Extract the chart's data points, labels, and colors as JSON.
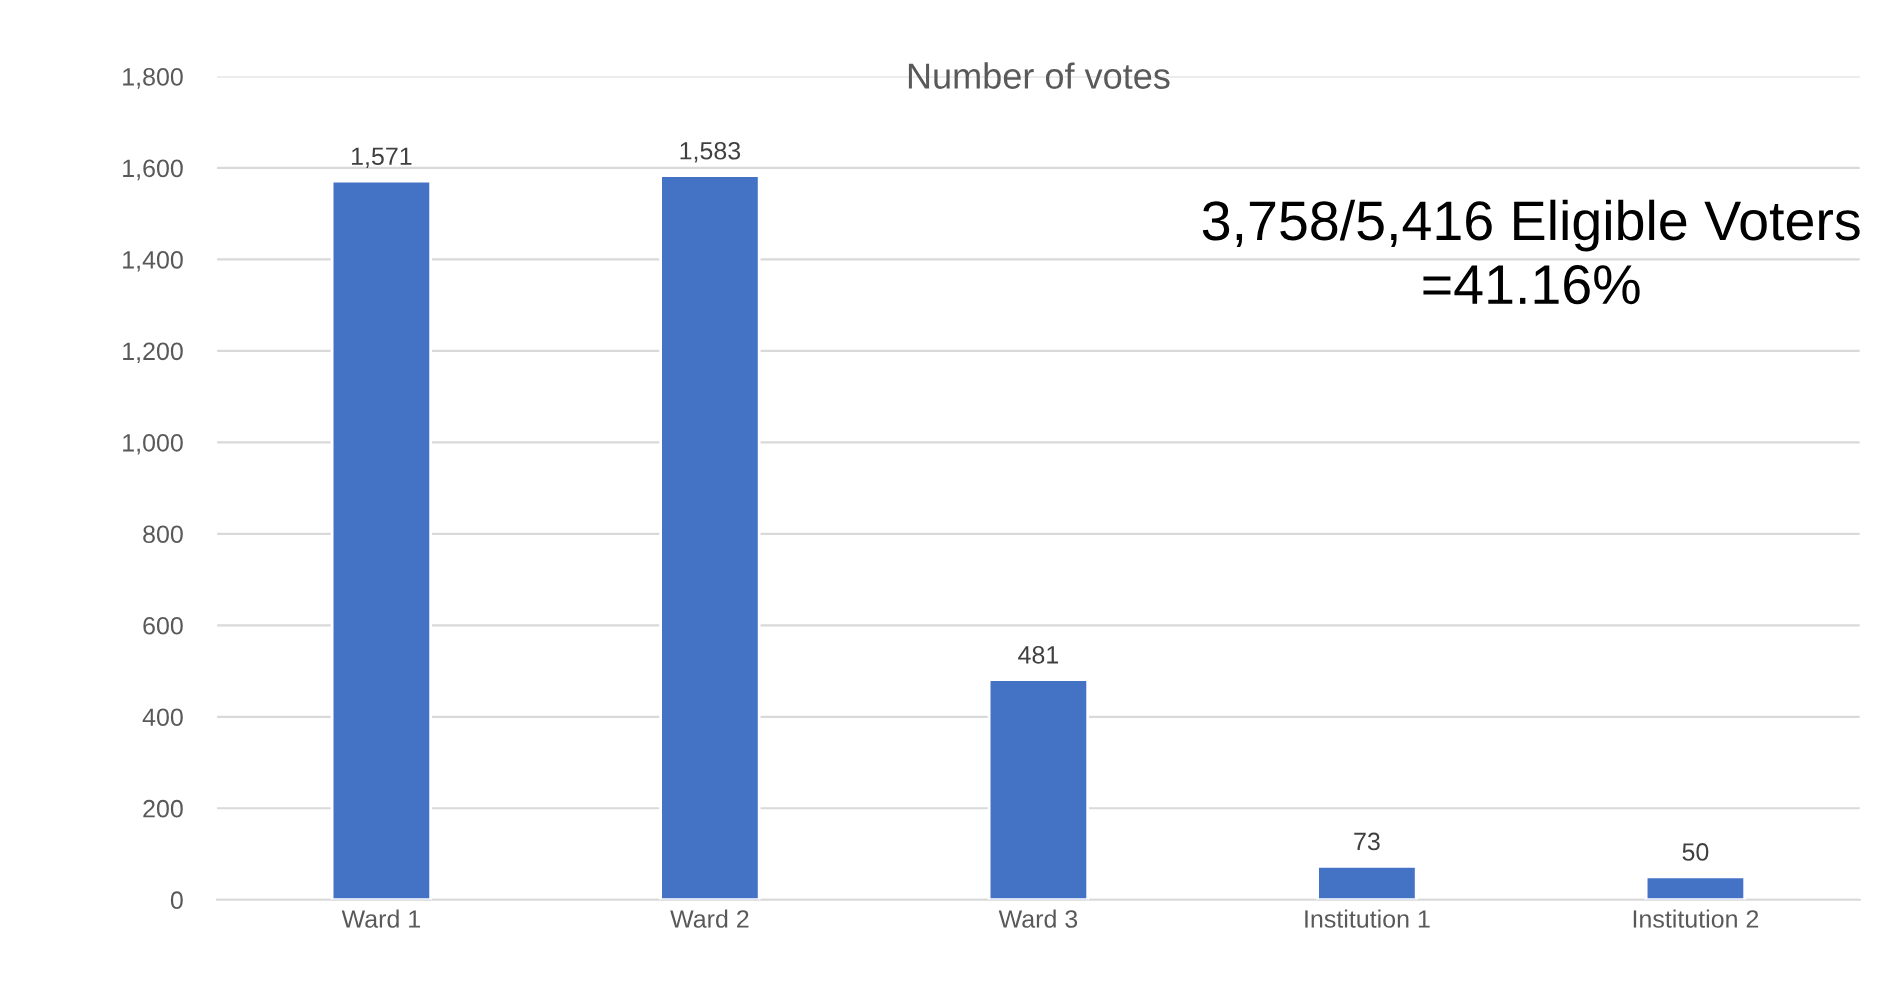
{
  "chart_data": {
    "type": "bar",
    "title": "Number of votes",
    "categories": [
      "Ward 1",
      "Ward 2",
      "Ward 3",
      "Institution 1",
      "Institution 2"
    ],
    "values": [
      1571,
      1583,
      481,
      73,
      50
    ],
    "value_labels": [
      "1,571",
      "1,583",
      "481",
      "73",
      "50"
    ],
    "color": "#4472c4",
    "ylim": [
      0,
      1800
    ],
    "yticks": [
      0,
      200,
      400,
      600,
      800,
      {
        "value": 1000,
        "label": "1,000"
      },
      {
        "value": 1200,
        "label": "1,200"
      },
      {
        "value": 1400,
        "label": "1,400"
      },
      {
        "value": 1600,
        "label": "1,600"
      },
      {
        "value": 1800,
        "label": "1,800"
      }
    ],
    "grid": "y",
    "annotations": [
      "3,758/5,416 Eligible Voters\n=41.16%"
    ]
  }
}
